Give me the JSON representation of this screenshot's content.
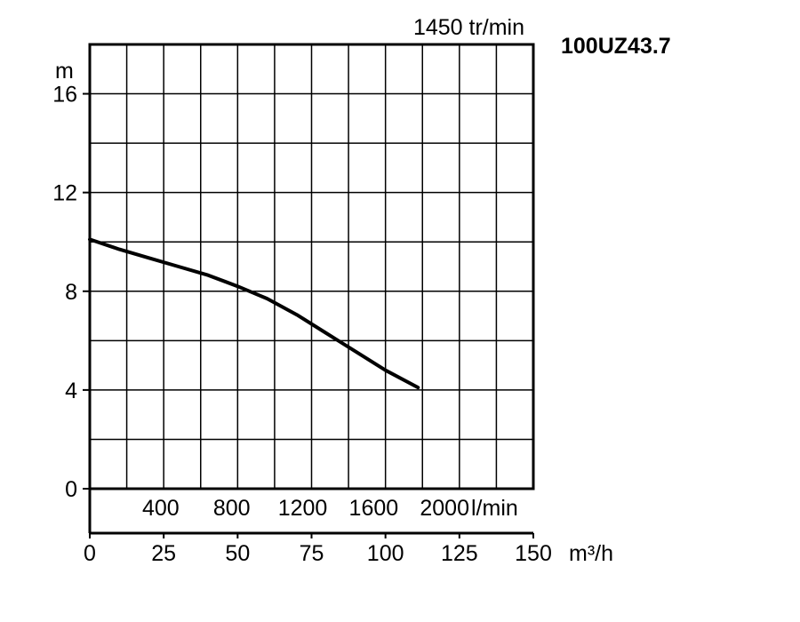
{
  "chart_data": {
    "type": "line",
    "title": "",
    "model": "100UZ43.7",
    "speed_label": "1450 tr/min",
    "ylabel": "m",
    "ylim": [
      0,
      18
    ],
    "yticks": [
      0,
      4,
      8,
      12,
      16
    ],
    "x_m3h": {
      "unit": "m³/h",
      "lim": [
        0,
        150
      ],
      "ticks": [
        0,
        25,
        50,
        75,
        100,
        125,
        150
      ]
    },
    "x_lmin": {
      "unit": "l/min",
      "ticks": [
        400,
        800,
        1200,
        1600,
        2000
      ]
    },
    "grid": true,
    "series": [
      {
        "x": [
          0,
          10,
          20,
          30,
          40,
          50,
          55,
          60,
          70,
          80,
          90,
          100,
          111
        ],
        "values": [
          10.1,
          9.7,
          9.35,
          9.0,
          8.65,
          8.2,
          7.95,
          7.7,
          7.05,
          6.3,
          5.55,
          4.8,
          4.1
        ]
      }
    ]
  }
}
